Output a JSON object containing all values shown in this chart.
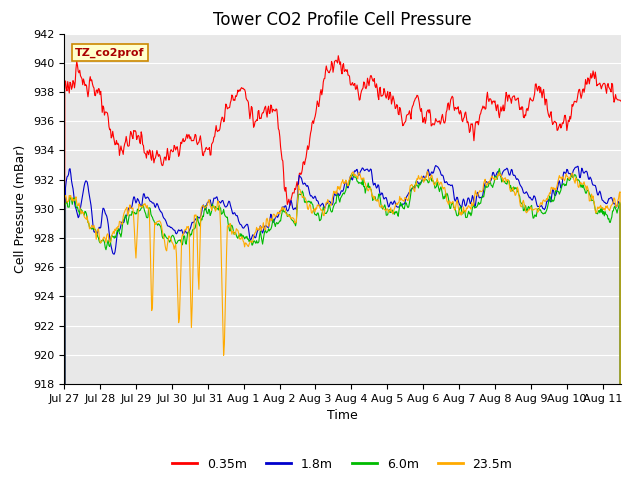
{
  "title": "Tower CO2 Profile Cell Pressure",
  "ylabel": "Cell Pressure (mBar)",
  "xlabel": "Time",
  "site_label": "TZ_co2prof",
  "ylim": [
    918,
    942
  ],
  "yticks": [
    918,
    920,
    922,
    924,
    926,
    928,
    930,
    932,
    934,
    936,
    938,
    940,
    942
  ],
  "xlim_days": [
    0,
    15.5
  ],
  "xtick_labels": [
    "Jul 27",
    "Jul 28",
    "Jul 29",
    "Jul 30",
    "Jul 31",
    "Aug 1",
    "Aug 2",
    "Aug 3",
    "Aug 4",
    "Aug 5",
    "Aug 6",
    "Aug 7",
    "Aug 8",
    "Aug 9",
    "Aug 10",
    "Aug 11"
  ],
  "xtick_positions": [
    0,
    1,
    2,
    3,
    4,
    5,
    6,
    7,
    8,
    9,
    10,
    11,
    12,
    13,
    14,
    15
  ],
  "colors": {
    "red": "#ff0000",
    "blue": "#0000cc",
    "green": "#00bb00",
    "orange": "#ffaa00"
  },
  "legend_labels": [
    "0.35m",
    "1.8m",
    "6.0m",
    "23.5m"
  ],
  "plot_bg": "#e8e8e8",
  "fig_bg": "#ffffff",
  "line_width": 0.8,
  "title_fontsize": 12,
  "label_fontsize": 9,
  "tick_fontsize": 8
}
